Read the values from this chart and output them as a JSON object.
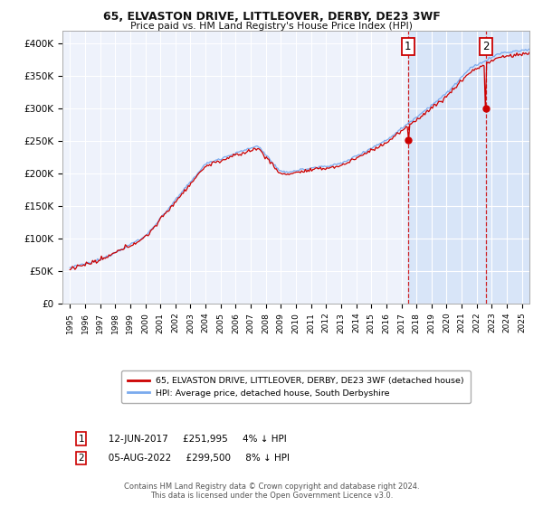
{
  "title": "65, ELVASTON DRIVE, LITTLEOVER, DERBY, DE23 3WF",
  "subtitle": "Price paid vs. HM Land Registry's House Price Index (HPI)",
  "ylim": [
    0,
    420000
  ],
  "yticks": [
    0,
    50000,
    100000,
    150000,
    200000,
    250000,
    300000,
    350000,
    400000
  ],
  "ytick_labels": [
    "£0",
    "£50K",
    "£100K",
    "£150K",
    "£200K",
    "£250K",
    "£300K",
    "£350K",
    "£400K"
  ],
  "background_color": "#ffffff",
  "plot_bg_color": "#eef2fb",
  "grid_color": "#ffffff",
  "legend_entry1": "65, ELVASTON DRIVE, LITTLEOVER, DERBY, DE23 3WF (detached house)",
  "legend_entry2": "HPI: Average price, detached house, South Derbyshire",
  "annotation1_label": "1",
  "annotation1_date": "12-JUN-2017",
  "annotation1_price": "£251,995",
  "annotation1_hpi": "4% ↓ HPI",
  "annotation2_label": "2",
  "annotation2_date": "05-AUG-2022",
  "annotation2_price": "£299,500",
  "annotation2_hpi": "8% ↓ HPI",
  "footer": "Contains HM Land Registry data © Crown copyright and database right 2024.\nThis data is licensed under the Open Government Licence v3.0.",
  "sale1_x": 2017.44,
  "sale1_y": 251995,
  "sale2_x": 2022.59,
  "sale2_y": 299500,
  "hpi_color": "#7aaaee",
  "price_color": "#cc0000",
  "vline_color": "#cc0000",
  "highlight_bg": "#d8e5f8",
  "xmin": 1994.5,
  "xmax": 2025.5
}
